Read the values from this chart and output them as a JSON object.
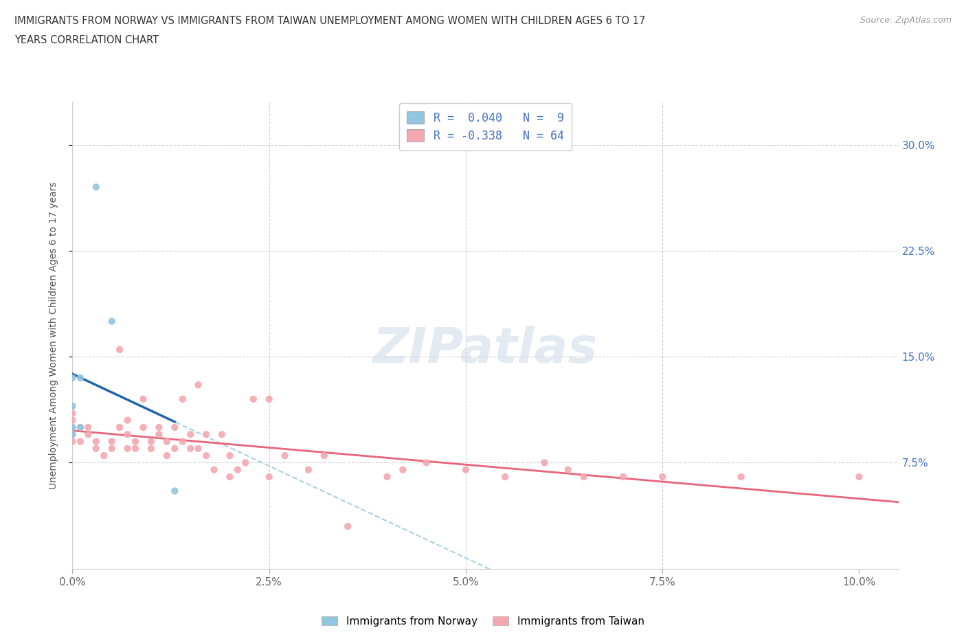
{
  "title_line1": "IMMIGRANTS FROM NORWAY VS IMMIGRANTS FROM TAIWAN UNEMPLOYMENT AMONG WOMEN WITH CHILDREN AGES 6 TO 17",
  "title_line2": "YEARS CORRELATION CHART",
  "source_text": "Source: ZipAtlas.com",
  "ylabel": "Unemployment Among Women with Children Ages 6 to 17 years",
  "xlim": [
    0.0,
    0.105
  ],
  "ylim": [
    0.0,
    0.33
  ],
  "xtick_labels": [
    "0.0%",
    "2.5%",
    "5.0%",
    "7.5%",
    "10.0%"
  ],
  "xtick_vals": [
    0.0,
    0.025,
    0.05,
    0.075,
    0.1
  ],
  "ytick_vals": [
    0.075,
    0.15,
    0.225,
    0.3
  ],
  "ytick_labels_right": [
    "7.5%",
    "15.0%",
    "22.5%",
    "30.0%"
  ],
  "background_color": "#ffffff",
  "norway_color": "#92c5de",
  "taiwan_color": "#f4a7b0",
  "norway_line_color": "#2166ac",
  "taiwan_line_color": "#e8647a",
  "norway_dashed_color": "#92c5de",
  "norway_R": 0.04,
  "norway_N": 9,
  "taiwan_R": -0.338,
  "taiwan_N": 64,
  "watermark": "ZIPatlas",
  "norway_scatter_x": [
    0.0,
    0.0,
    0.0,
    0.0,
    0.001,
    0.001,
    0.003,
    0.005,
    0.013
  ],
  "norway_scatter_y": [
    0.095,
    0.1,
    0.115,
    0.135,
    0.135,
    0.1,
    0.27,
    0.175,
    0.055
  ],
  "taiwan_scatter_x": [
    0.0,
    0.0,
    0.0,
    0.0,
    0.0,
    0.001,
    0.001,
    0.002,
    0.002,
    0.003,
    0.003,
    0.004,
    0.005,
    0.005,
    0.006,
    0.006,
    0.007,
    0.007,
    0.007,
    0.008,
    0.008,
    0.009,
    0.009,
    0.01,
    0.01,
    0.011,
    0.011,
    0.012,
    0.012,
    0.013,
    0.013,
    0.014,
    0.014,
    0.015,
    0.015,
    0.016,
    0.016,
    0.017,
    0.017,
    0.018,
    0.019,
    0.02,
    0.02,
    0.021,
    0.022,
    0.023,
    0.025,
    0.025,
    0.027,
    0.03,
    0.032,
    0.035,
    0.04,
    0.042,
    0.045,
    0.05,
    0.055,
    0.06,
    0.063,
    0.065,
    0.07,
    0.075,
    0.085,
    0.1
  ],
  "taiwan_scatter_y": [
    0.09,
    0.095,
    0.1,
    0.105,
    0.11,
    0.09,
    0.1,
    0.095,
    0.1,
    0.085,
    0.09,
    0.08,
    0.085,
    0.09,
    0.1,
    0.155,
    0.085,
    0.095,
    0.105,
    0.085,
    0.09,
    0.1,
    0.12,
    0.085,
    0.09,
    0.095,
    0.1,
    0.08,
    0.09,
    0.085,
    0.1,
    0.09,
    0.12,
    0.085,
    0.095,
    0.085,
    0.13,
    0.08,
    0.095,
    0.07,
    0.095,
    0.065,
    0.08,
    0.07,
    0.075,
    0.12,
    0.065,
    0.12,
    0.08,
    0.07,
    0.08,
    0.03,
    0.065,
    0.07,
    0.075,
    0.07,
    0.065,
    0.075,
    0.07,
    0.065,
    0.065,
    0.065,
    0.065,
    0.065
  ]
}
